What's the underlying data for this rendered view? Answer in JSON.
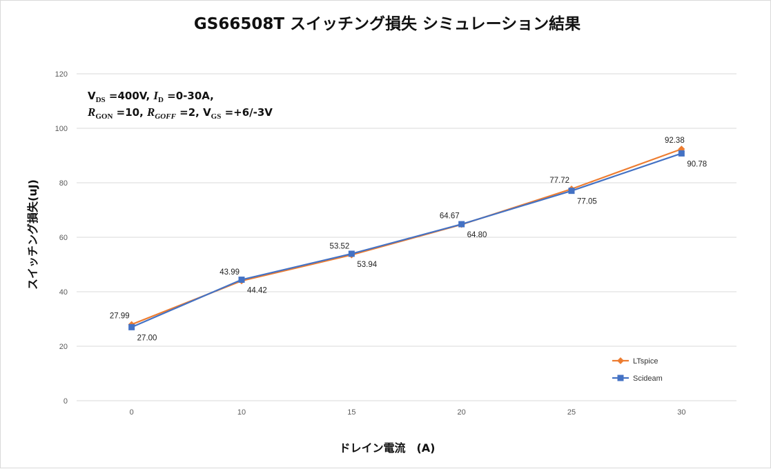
{
  "chart_data": {
    "type": "line",
    "title": "GS66508T スイッチング損失 シミュレーション結果",
    "xlabel": "ドレイン電流　(A)",
    "ylabel": "スイッチング損失(uJ)",
    "categories": [
      "0",
      "10",
      "15",
      "20",
      "25",
      "30"
    ],
    "ylim": [
      0,
      120
    ],
    "yticks": [
      "0",
      "20",
      "40",
      "60",
      "80",
      "100",
      "120"
    ],
    "grid": true,
    "legend_position": "bottom-right",
    "series": [
      {
        "name": "LTspice",
        "color": "#ED7D31",
        "marker": "diamond",
        "values": [
          27.99,
          43.99,
          53.52,
          64.67,
          77.72,
          92.38
        ],
        "labels": [
          "27.99",
          "43.99",
          "53.52",
          "64.67",
          "77.72",
          "92.38"
        ]
      },
      {
        "name": "Scideam",
        "color": "#4472C4",
        "marker": "square",
        "values": [
          27.0,
          44.42,
          53.94,
          64.8,
          77.05,
          90.78
        ],
        "labels": [
          "27.00",
          "44.42",
          "53.94",
          "64.80",
          "77.05",
          "90.78"
        ]
      }
    ],
    "annotation": {
      "line1": {
        "v": "V",
        "ds": "DS",
        "eq1": " =400V, ",
        "i": "I",
        "d": "D",
        "eq2": " =0-30A,"
      },
      "line2": {
        "r1": "R",
        "gon": "GON",
        "eq1": " =10, ",
        "r2": "R",
        "goff": "GOFF",
        "eq2": " =2, ",
        "v": "V",
        "gs": "GS",
        "eq3": " =+6/-3V"
      }
    }
  }
}
